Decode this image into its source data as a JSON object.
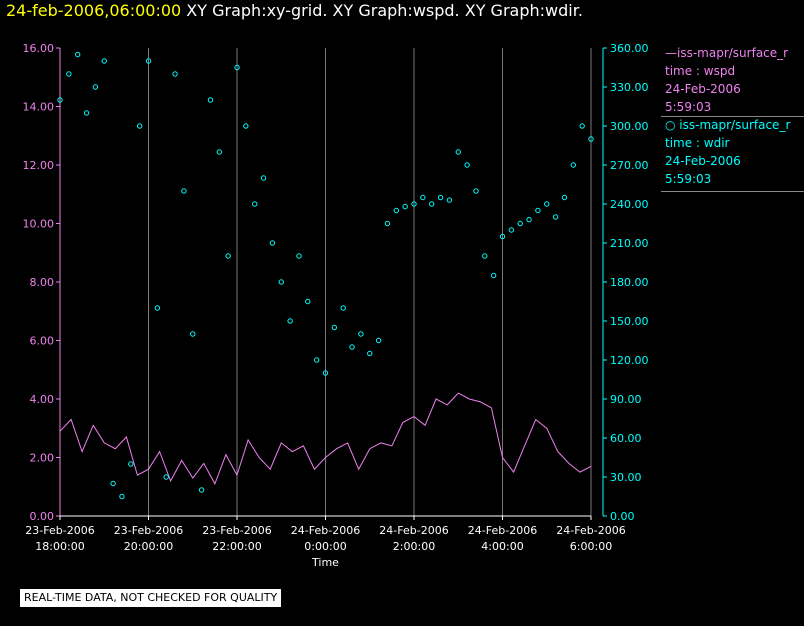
{
  "title": {
    "datetime": "24-feb-2006,06:00:00",
    "segments": [
      "XY Graph:xy-grid.",
      "XY Graph:wspd.",
      "XY Graph:wdir."
    ]
  },
  "legend": [
    {
      "series": "wspd",
      "line1": "—iss-mapr/surface_r",
      "line2": "time : wspd",
      "line3": "24-Feb-2006",
      "line4": "5:59:03"
    },
    {
      "series": "wdir",
      "line1": "○ iss-mapr/surface_r",
      "line2": "time : wdir",
      "line3": "24-Feb-2006",
      "line4": "5:59:03"
    }
  ],
  "disclaimer": "REAL-TIME DATA, NOT CHECKED FOR QUALITY",
  "colors": {
    "wspd": "#ee82ee",
    "wdir": "#00ffff",
    "grid": "#ffffff",
    "left_axis": "#ee82ee",
    "right_axis": "#00ffff"
  },
  "chart_data": {
    "type": "line",
    "xlabel": "Time",
    "x_unit": "hours since 23-Feb-2006 18:00",
    "xlim": [
      0,
      12
    ],
    "xticks": [
      {
        "v": 0,
        "l1": "23-Feb-2006",
        "l2": "18:00:00"
      },
      {
        "v": 2,
        "l1": "23-Feb-2006",
        "l2": "20:00:00"
      },
      {
        "v": 4,
        "l1": "23-Feb-2006",
        "l2": "22:00:00"
      },
      {
        "v": 6,
        "l1": "24-Feb-2006",
        "l2": "0:00:00"
      },
      {
        "v": 8,
        "l1": "24-Feb-2006",
        "l2": "2:00:00"
      },
      {
        "v": 10,
        "l1": "24-Feb-2006",
        "l2": "4:00:00"
      },
      {
        "v": 12,
        "l1": "24-Feb-2006",
        "l2": "6:00:00"
      }
    ],
    "y_left": {
      "label": "wspd",
      "min": 0,
      "max": 16,
      "ticks": [
        "0.00",
        "2.00",
        "4.00",
        "6.00",
        "8.00",
        "10.00",
        "12.00",
        "14.00",
        "16.00"
      ]
    },
    "y_right": {
      "label": "wdir",
      "min": 0,
      "max": 360,
      "ticks": [
        "0.00",
        "30.00",
        "60.00",
        "90.00",
        "120.00",
        "150.00",
        "180.00",
        "210.00",
        "240.00",
        "270.00",
        "300.00",
        "330.00",
        "360.00"
      ]
    },
    "grid": "vertical lines at x ticks",
    "series": [
      {
        "name": "wspd",
        "style": "line",
        "axis": "left",
        "x": [
          0,
          0.25,
          0.5,
          0.75,
          1,
          1.25,
          1.5,
          1.75,
          2,
          2.25,
          2.5,
          2.75,
          3,
          3.25,
          3.5,
          3.75,
          4,
          4.25,
          4.5,
          4.75,
          5,
          5.25,
          5.5,
          5.75,
          6,
          6.25,
          6.5,
          6.75,
          7,
          7.25,
          7.5,
          7.75,
          8,
          8.25,
          8.5,
          8.75,
          9,
          9.25,
          9.5,
          9.75,
          10,
          10.25,
          10.5,
          10.75,
          11,
          11.25,
          11.5,
          11.75,
          12
        ],
        "y": [
          2.9,
          3.3,
          2.2,
          3.1,
          2.5,
          2.3,
          2.7,
          1.4,
          1.6,
          2.2,
          1.2,
          1.9,
          1.3,
          1.8,
          1.1,
          2.1,
          1.4,
          2.6,
          2.0,
          1.6,
          2.5,
          2.2,
          2.4,
          1.6,
          2.0,
          2.3,
          2.5,
          1.6,
          2.3,
          2.5,
          2.4,
          3.2,
          3.4,
          3.1,
          4.0,
          3.8,
          4.2,
          4.0,
          3.9,
          3.7,
          2.0,
          1.5,
          2.4,
          3.3,
          3.0,
          2.2,
          1.8,
          1.5,
          1.7
        ]
      },
      {
        "name": "wdir",
        "style": "scatter",
        "axis": "right",
        "x": [
          0,
          0.2,
          0.4,
          0.6,
          0.8,
          1,
          1.2,
          1.4,
          1.6,
          1.8,
          2,
          2.2,
          2.4,
          2.6,
          2.8,
          3,
          3.2,
          3.4,
          3.6,
          3.8,
          4,
          4.2,
          4.4,
          4.6,
          4.8,
          5,
          5.2,
          5.4,
          5.6,
          5.8,
          6,
          6.2,
          6.4,
          6.6,
          6.8,
          7,
          7.2,
          7.4,
          7.6,
          7.8,
          8,
          8.2,
          8.4,
          8.6,
          8.8,
          9,
          9.2,
          9.4,
          9.6,
          9.8,
          10,
          10.2,
          10.4,
          10.6,
          10.8,
          11,
          11.2,
          11.4,
          11.6,
          11.8,
          12
        ],
        "y": [
          320,
          340,
          355,
          310,
          330,
          350,
          25,
          15,
          40,
          300,
          350,
          160,
          30,
          340,
          250,
          140,
          20,
          320,
          280,
          200,
          345,
          300,
          240,
          260,
          210,
          180,
          150,
          200,
          165,
          120,
          110,
          145,
          160,
          130,
          140,
          125,
          135,
          225,
          235,
          238,
          240,
          245,
          240,
          245,
          243,
          280,
          270,
          250,
          200,
          185,
          215,
          220,
          225,
          228,
          235,
          240,
          230,
          245,
          270,
          300,
          290
        ]
      }
    ]
  }
}
